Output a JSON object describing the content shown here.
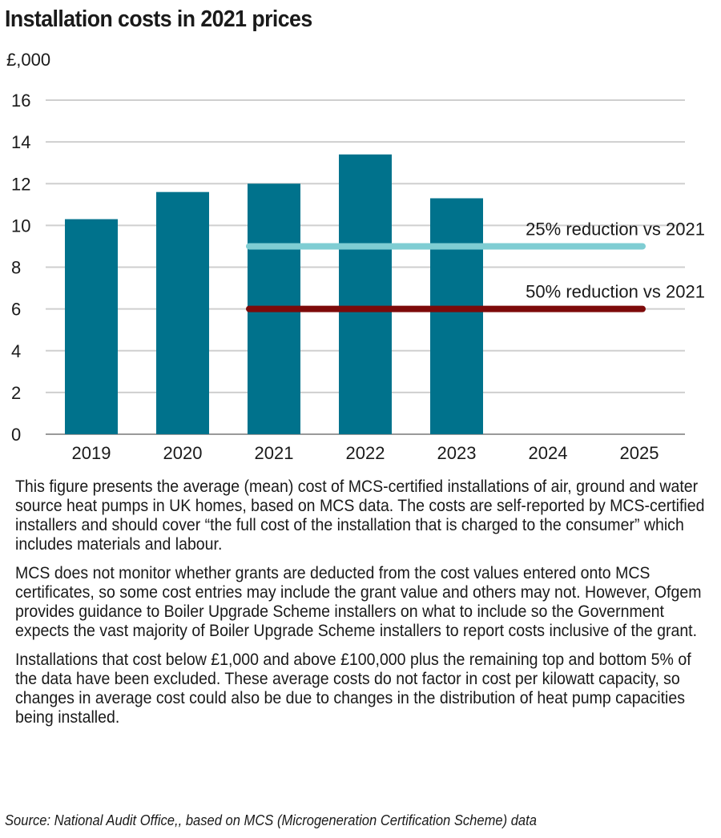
{
  "title": "Installation costs in 2021 prices",
  "chart_data": {
    "type": "bar",
    "ylabel": "£,000",
    "categories": [
      "2019",
      "2020",
      "2021",
      "2022",
      "2023",
      "2024",
      "2025"
    ],
    "values": [
      10.3,
      11.6,
      12.0,
      13.4,
      11.3,
      null,
      null
    ],
    "ylim": [
      0,
      16
    ],
    "yticks": [
      "0",
      "2",
      "4",
      "6",
      "8",
      "10",
      "12",
      "14",
      "16"
    ],
    "grid": true,
    "bar_color": "#00728c",
    "reference_lines": [
      {
        "label": "25% reduction vs 2021",
        "value": 9.0,
        "from": "2021",
        "to": "2025",
        "color": "#7fcdd3"
      },
      {
        "label": "50% reduction vs 2021",
        "value": 6.0,
        "from": "2021",
        "to": "2025",
        "color": "#7d0a0a"
      }
    ]
  },
  "notes": [
    "This figure presents the average (mean) cost of MCS-certified installations of air, ground and water source heat pumps in UK homes, based on MCS data. The costs are self-reported by MCS-certified installers and should cover “the full cost of the installation that is charged to the consumer” which includes materials and labour.",
    "MCS does not monitor whether grants are deducted from the cost values entered onto MCS certificates, so some cost entries may include the grant value and others may not. However, Ofgem provides guidance to Boiler Upgrade Scheme installers on what to include so the Government expects the vast majority of Boiler Upgrade Scheme installers to report costs inclusive of the grant.",
    "Installations that cost below £1,000 and above £100,000 plus the remaining top and bottom 5% of the data have been excluded. These average costs do not factor in cost per kilowatt capacity, so changes in average cost could also be due to changes in the distribution of heat pump capacities being installed."
  ],
  "source": "Source: National Audit Office,, based on MCS (Microgeneration Certification Scheme) data"
}
